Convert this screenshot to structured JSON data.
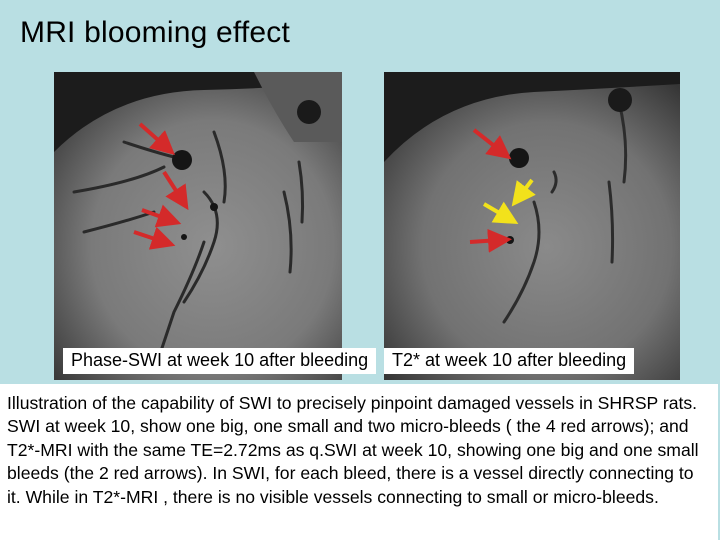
{
  "slide": {
    "title": "MRI blooming effect",
    "left_caption": "Phase-SWI at week 10 after bleeding",
    "right_caption": "T2* at week 10 after bleeding",
    "description": "Illustration of the capability of SWI to precisely pinpoint damaged vessels in SHRSP rats. SWI at week 10, show one big, one small and two micro-bleeds ( the 4 red arrows); and T2*-MRI with the same TE=2.72ms as q.SWI at week 10, showing one big and one small bleeds (the 2 red arrows).   In SWI, for each bleed, there is a vessel directly connecting to it. While in T2*-MRI , there is no visible vessels connecting to small or micro-bleeds."
  },
  "colors": {
    "background": "#b9dfe3",
    "red_arrow": "#d42a2a",
    "yellow_arrow": "#f2e21b"
  }
}
